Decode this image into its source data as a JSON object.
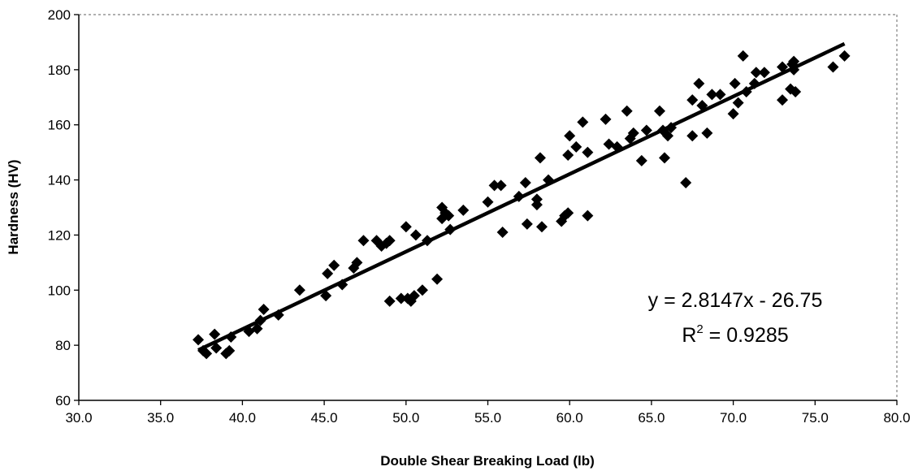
{
  "chart_data": {
    "type": "scatter",
    "xlabel": "Double Shear Breaking Load (lb)",
    "ylabel": "Hardness (HV)",
    "xlim": [
      30.0,
      80.0
    ],
    "ylim": [
      60,
      200
    ],
    "x_ticks": [
      "30.0",
      "35.0",
      "40.0",
      "45.0",
      "50.0",
      "55.0",
      "60.0",
      "65.0",
      "70.0",
      "75.0",
      "80.0"
    ],
    "y_ticks": [
      "60",
      "80",
      "100",
      "120",
      "140",
      "160",
      "180",
      "200"
    ],
    "grid": false,
    "legend": "none",
    "marker": "diamond",
    "marker_color": "#000000",
    "series": [
      {
        "points": [
          [
            37.3,
            82
          ],
          [
            37.6,
            78
          ],
          [
            37.8,
            77
          ],
          [
            38.3,
            84
          ],
          [
            38.4,
            79
          ],
          [
            39.0,
            77
          ],
          [
            39.2,
            78
          ],
          [
            39.3,
            83
          ],
          [
            40.4,
            85
          ],
          [
            40.9,
            86
          ],
          [
            41.1,
            89
          ],
          [
            41.3,
            93
          ],
          [
            42.2,
            91
          ],
          [
            43.5,
            100
          ],
          [
            45.1,
            98
          ],
          [
            45.2,
            106
          ],
          [
            45.6,
            109
          ],
          [
            46.1,
            102
          ],
          [
            46.8,
            108
          ],
          [
            47.0,
            110
          ],
          [
            47.4,
            118
          ],
          [
            48.2,
            118
          ],
          [
            48.5,
            116
          ],
          [
            48.8,
            117
          ],
          [
            49.0,
            118
          ],
          [
            49.0,
            96
          ],
          [
            49.7,
            97
          ],
          [
            50.0,
            123
          ],
          [
            50.1,
            97
          ],
          [
            50.3,
            96
          ],
          [
            50.5,
            98
          ],
          [
            50.6,
            120
          ],
          [
            51.0,
            100
          ],
          [
            51.3,
            118
          ],
          [
            51.9,
            104
          ],
          [
            52.2,
            130
          ],
          [
            52.2,
            126
          ],
          [
            52.4,
            128
          ],
          [
            52.6,
            127
          ],
          [
            52.7,
            122
          ],
          [
            53.5,
            129
          ],
          [
            55.0,
            132
          ],
          [
            55.4,
            138
          ],
          [
            55.8,
            138
          ],
          [
            55.9,
            121
          ],
          [
            56.9,
            134
          ],
          [
            57.3,
            139
          ],
          [
            57.4,
            124
          ],
          [
            58.0,
            131
          ],
          [
            58.0,
            133
          ],
          [
            58.2,
            148
          ],
          [
            58.3,
            123
          ],
          [
            58.7,
            140
          ],
          [
            59.5,
            125
          ],
          [
            59.7,
            127
          ],
          [
            59.9,
            128
          ],
          [
            59.9,
            149
          ],
          [
            60.0,
            156
          ],
          [
            60.4,
            152
          ],
          [
            60.8,
            161
          ],
          [
            61.1,
            150
          ],
          [
            61.1,
            127
          ],
          [
            62.2,
            162
          ],
          [
            62.4,
            153
          ],
          [
            62.9,
            152
          ],
          [
            63.5,
            165
          ],
          [
            63.7,
            155
          ],
          [
            63.9,
            157
          ],
          [
            64.4,
            147
          ],
          [
            64.7,
            158
          ],
          [
            65.5,
            165
          ],
          [
            65.7,
            158
          ],
          [
            65.8,
            148
          ],
          [
            66.0,
            156
          ],
          [
            66.2,
            159
          ],
          [
            67.1,
            139
          ],
          [
            67.5,
            156
          ],
          [
            67.5,
            169
          ],
          [
            67.9,
            175
          ],
          [
            68.1,
            167
          ],
          [
            68.4,
            157
          ],
          [
            68.7,
            171
          ],
          [
            69.2,
            171
          ],
          [
            70.0,
            164
          ],
          [
            70.1,
            175
          ],
          [
            70.3,
            168
          ],
          [
            70.6,
            185
          ],
          [
            70.8,
            172
          ],
          [
            71.3,
            175
          ],
          [
            71.4,
            179
          ],
          [
            71.9,
            179
          ],
          [
            73.0,
            169
          ],
          [
            73.0,
            181
          ],
          [
            73.5,
            173
          ],
          [
            73.6,
            182
          ],
          [
            73.7,
            183
          ],
          [
            73.7,
            180
          ],
          [
            73.8,
            172
          ],
          [
            76.1,
            181
          ],
          [
            76.8,
            185
          ]
        ]
      }
    ],
    "trendline": {
      "slope": 2.8147,
      "intercept": -26.75,
      "x_range": [
        37.3,
        76.8
      ],
      "equation_text": "y = 2.8147x - 26.75",
      "r2_prefix": "R",
      "r2_sup": "2",
      "r2_suffix": " = 0.9285"
    }
  }
}
